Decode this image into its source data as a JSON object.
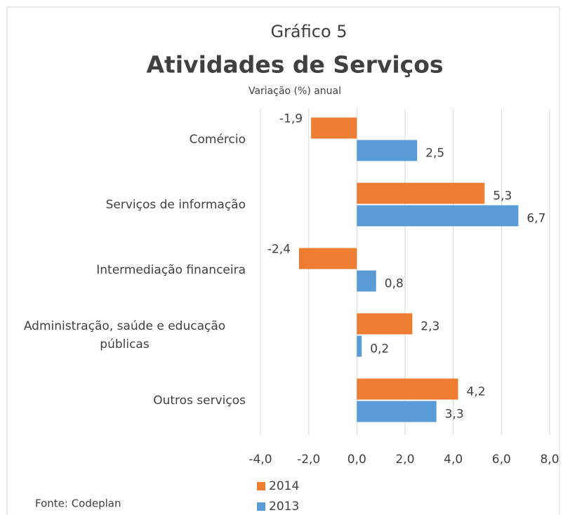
{
  "chart_data": {
    "type": "hbar",
    "supertitle": "Gráfico 5",
    "title": "Atividades de Serviços",
    "subtitle": "Variação (%) anual",
    "source": "Fonte: Codeplan",
    "categories": [
      "Comércio",
      "Serviços de informação",
      "Intermediação financeira",
      "Administração, saúde e educação públicas",
      "Outros serviços"
    ],
    "series": [
      {
        "name": "2014",
        "color": "#ed7d31",
        "values": [
          -1.9,
          5.3,
          -2.4,
          2.3,
          4.2
        ],
        "value_labels": [
          "-1,9",
          "5,3",
          "-2,4",
          "2,3",
          "4,2"
        ]
      },
      {
        "name": "2013",
        "color": "#5b9bd5",
        "values": [
          2.5,
          6.7,
          0.8,
          0.2,
          3.3
        ],
        "value_labels": [
          "2,5",
          "6,7",
          "0,8",
          "0,2",
          "3,3"
        ]
      }
    ],
    "xlim": [
      -4,
      8
    ],
    "xticks": [
      {
        "value": -4,
        "label": "-4,0"
      },
      {
        "value": -2,
        "label": "-2,0"
      },
      {
        "value": 0,
        "label": "0,0"
      },
      {
        "value": 2,
        "label": "2,0"
      },
      {
        "value": 4,
        "label": "4,0"
      },
      {
        "value": 6,
        "label": "6,0"
      },
      {
        "value": 8,
        "label": "8,0"
      }
    ],
    "grid": true,
    "legend": "bottom"
  }
}
